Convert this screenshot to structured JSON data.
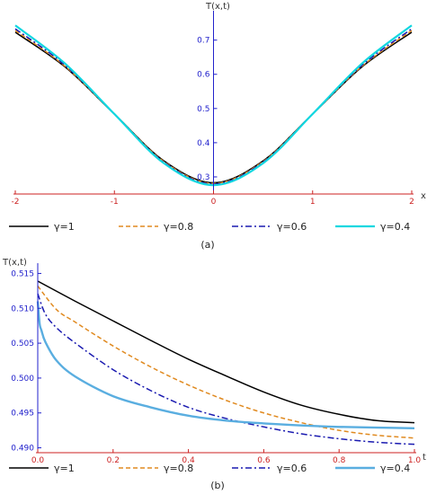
{
  "chart_data": [
    {
      "type": "line",
      "panel_label": "(a)",
      "ylabel": "T(x,t)",
      "xlabel": "x",
      "xlim": [
        -2,
        2
      ],
      "ylim": [
        0.25,
        0.77
      ],
      "x_ticks": [
        -2,
        -1,
        0,
        1,
        2
      ],
      "x_tick_labels": [
        "-2",
        "-1",
        "0",
        "1",
        "2"
      ],
      "y_ticks": [
        0.3,
        0.4,
        0.5,
        0.6,
        0.7
      ],
      "y_tick_labels": [
        "0.3",
        "0.4",
        "0.5",
        "0.6",
        "0.7"
      ],
      "axis_color": "#cc2222",
      "y_axis_color": "#2222cc",
      "legend_position": "bottom",
      "series": [
        {
          "name": "γ=1",
          "color": "#000000",
          "dash": "solid",
          "width": 1.5,
          "x": [
            -2,
            -1.5,
            -1,
            -0.5,
            0,
            0.5,
            1,
            1.5,
            2
          ],
          "y": [
            0.723,
            0.622,
            0.484,
            0.347,
            0.283,
            0.347,
            0.484,
            0.622,
            0.723
          ]
        },
        {
          "name": "γ=0.8",
          "color": "#e08a20",
          "dash": "dashed",
          "width": 1.5,
          "x": [
            -2,
            -1.5,
            -1,
            -0.5,
            0,
            0.5,
            1,
            1.5,
            2
          ],
          "y": [
            0.728,
            0.624,
            0.484,
            0.345,
            0.281,
            0.345,
            0.484,
            0.624,
            0.728
          ]
        },
        {
          "name": "γ=0.6",
          "color": "#1a1ab0",
          "dash": "dashdot",
          "width": 1.5,
          "x": [
            -2,
            -1.5,
            -1,
            -0.5,
            0,
            0.5,
            1,
            1.5,
            2
          ],
          "y": [
            0.733,
            0.627,
            0.484,
            0.343,
            0.279,
            0.343,
            0.484,
            0.627,
            0.733
          ]
        },
        {
          "name": "γ=0.4",
          "color": "#11d7e0",
          "dash": "solid",
          "width": 2.2,
          "x": [
            -2,
            -1.5,
            -1,
            -0.5,
            0,
            0.5,
            1,
            1.5,
            2
          ],
          "y": [
            0.743,
            0.632,
            0.484,
            0.34,
            0.276,
            0.34,
            0.484,
            0.632,
            0.743
          ]
        }
      ]
    },
    {
      "type": "line",
      "panel_label": "(b)",
      "ylabel": "T(x,t)",
      "xlabel": "t",
      "xlim": [
        0,
        1
      ],
      "ylim": [
        0.4893,
        0.5157
      ],
      "x_ticks": [
        0,
        0.2,
        0.4,
        0.6,
        0.8,
        1.0
      ],
      "x_tick_labels": [
        "0.0",
        "0.2",
        "0.4",
        "0.6",
        "0.8",
        "1.0"
      ],
      "y_ticks": [
        0.49,
        0.495,
        0.5,
        0.505,
        0.51,
        0.515
      ],
      "y_tick_labels": [
        "0.490",
        "0.495",
        "0.500",
        "0.505",
        "0.510",
        "0.515"
      ],
      "axis_color": "#cc2222",
      "y_axis_color": "#2222cc",
      "legend_position": "bottom",
      "series": [
        {
          "name": "γ=1",
          "color": "#000000",
          "dash": "solid",
          "width": 1.5,
          "x": [
            0,
            0.1,
            0.2,
            0.3,
            0.4,
            0.5,
            0.6,
            0.7,
            0.8,
            0.9,
            1.0
          ],
          "y": [
            0.5139,
            0.511,
            0.5082,
            0.5054,
            0.5027,
            0.5003,
            0.498,
            0.4961,
            0.4948,
            0.4939,
            0.4936
          ]
        },
        {
          "name": "γ=0.8",
          "color": "#e08a20",
          "dash": "dashed",
          "width": 1.5,
          "x": [
            0,
            0.05,
            0.1,
            0.2,
            0.3,
            0.4,
            0.5,
            0.6,
            0.7,
            0.8,
            0.9,
            1.0
          ],
          "y": [
            0.5132,
            0.5098,
            0.508,
            0.5046,
            0.5016,
            0.499,
            0.4968,
            0.495,
            0.4936,
            0.4925,
            0.4918,
            0.4914
          ]
        },
        {
          "name": "γ=0.6",
          "color": "#1a1ab0",
          "dash": "dashdot",
          "width": 1.5,
          "x": [
            0,
            0.02,
            0.05,
            0.1,
            0.2,
            0.3,
            0.4,
            0.5,
            0.6,
            0.7,
            0.8,
            0.9,
            1.0
          ],
          "y": [
            0.5121,
            0.5092,
            0.5072,
            0.505,
            0.5012,
            0.4982,
            0.4958,
            0.4942,
            0.493,
            0.492,
            0.4913,
            0.4908,
            0.4905
          ]
        },
        {
          "name": "γ=0.4",
          "color": "#5aaee0",
          "dash": "solid",
          "width": 2.4,
          "x": [
            0,
            0.005,
            0.01,
            0.02,
            0.05,
            0.1,
            0.2,
            0.3,
            0.4,
            0.5,
            0.6,
            0.7,
            0.8,
            0.9,
            1.0
          ],
          "y": [
            0.511,
            0.5078,
            0.5068,
            0.5052,
            0.5025,
            0.5002,
            0.4974,
            0.4958,
            0.4946,
            0.4939,
            0.4935,
            0.4932,
            0.493,
            0.4929,
            0.4928
          ]
        }
      ]
    }
  ]
}
